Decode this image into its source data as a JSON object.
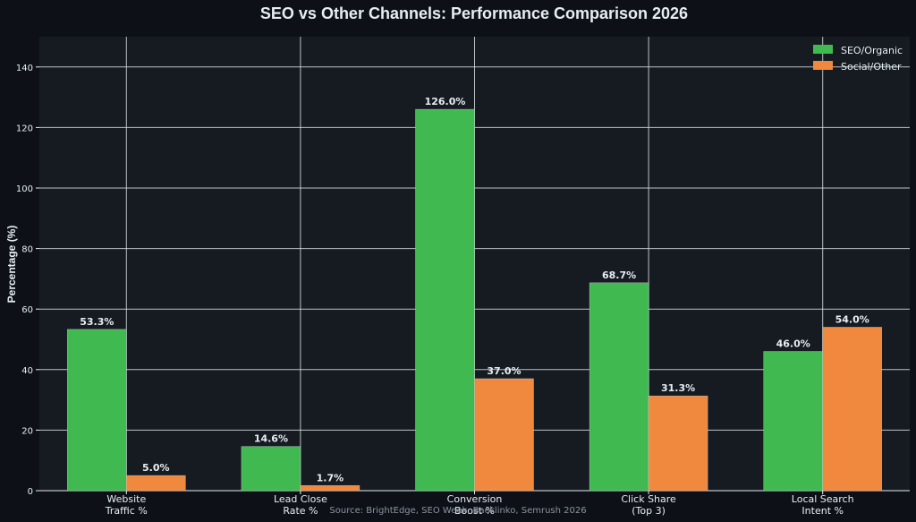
{
  "colors": {
    "background": "#0d1117",
    "plot_background": "#161b22",
    "grid": "#d8dde3",
    "text": "#e6edf3",
    "source_text": "#8b949e",
    "seo": "#3fb950",
    "social": "#f0883e"
  },
  "chart_data": {
    "type": "bar",
    "title": "SEO vs Other Channels: Performance Comparison 2026",
    "ylabel": "Percentage (%)",
    "xlabel": "",
    "ylim": [
      0,
      150
    ],
    "yticks": [
      0,
      20,
      40,
      60,
      80,
      100,
      120,
      140
    ],
    "grid": true,
    "legend_position": "top-right",
    "categories": [
      [
        "Website",
        "Traffic %"
      ],
      [
        "Lead Close",
        "Rate %"
      ],
      [
        "Conversion",
        "Boost %"
      ],
      [
        "Click Share",
        "(Top 3)"
      ],
      [
        "Local Search",
        "Intent %"
      ]
    ],
    "series": [
      {
        "name": "SEO/Organic",
        "color_key": "seo",
        "values": [
          53.3,
          14.6,
          126.0,
          68.7,
          46.0
        ]
      },
      {
        "name": "Social/Other",
        "color_key": "social",
        "values": [
          5.0,
          1.7,
          37.0,
          31.3,
          54.0
        ]
      }
    ],
    "value_labels": [
      [
        "53.3%",
        "14.6%",
        "126.0%",
        "68.7%",
        "46.0%"
      ],
      [
        "5.0%",
        "1.7%",
        "37.0%",
        "31.3%",
        "54.0%"
      ]
    ],
    "source": "Source: BrightEdge, SEO Week, Backlinko, Semrush 2026"
  }
}
